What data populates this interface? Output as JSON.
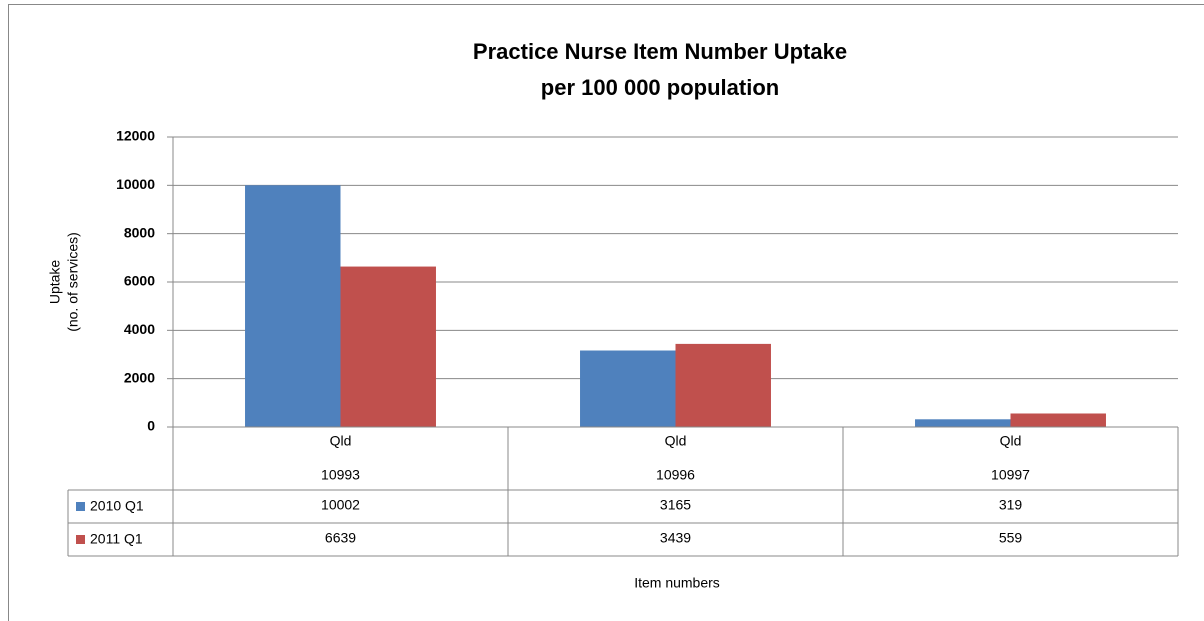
{
  "chart_data": {
    "type": "bar",
    "title": [
      "Practice Nurse Item Number Uptake",
      "per 100 000 population"
    ],
    "ylabel": [
      "Uptake",
      "(no. of services)"
    ],
    "xlabel": "Item numbers",
    "categories": [
      [
        "Qld",
        "10993"
      ],
      [
        "Qld",
        "10996"
      ],
      [
        "Qld",
        "10997"
      ]
    ],
    "series": [
      {
        "name": "2010 Q1",
        "color": "#4f81bd",
        "values": [
          10002,
          3165,
          319
        ]
      },
      {
        "name": "2011 Q1",
        "color": "#c0504d",
        "values": [
          6639,
          3439,
          559
        ]
      }
    ],
    "ylim": [
      0,
      12000
    ],
    "yticks": [
      0,
      2000,
      4000,
      6000,
      8000,
      10000,
      12000
    ],
    "grid": true
  }
}
